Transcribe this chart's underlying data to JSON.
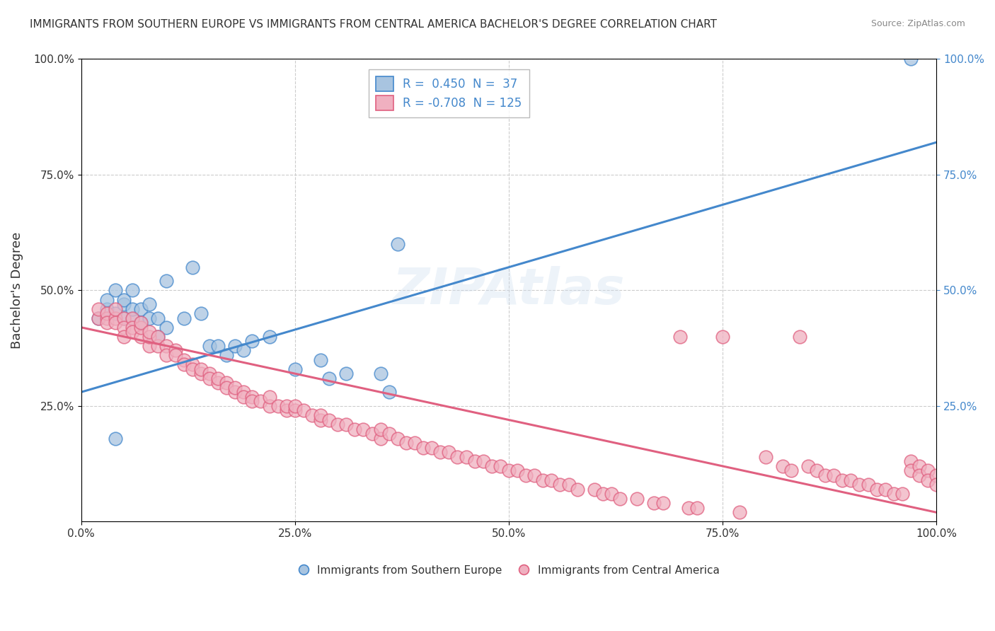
{
  "title": "IMMIGRANTS FROM SOUTHERN EUROPE VS IMMIGRANTS FROM CENTRAL AMERICA BACHELOR'S DEGREE CORRELATION CHART",
  "source": "Source: ZipAtlas.com",
  "ylabel_label": "Bachelor's Degree",
  "x_tick_labels": [
    "0.0%",
    "25.0%",
    "50.0%",
    "75.0%",
    "100.0%"
  ],
  "x_tick_vals": [
    0,
    0.25,
    0.5,
    0.75,
    1.0
  ],
  "y_tick_labels": [
    "25.0%",
    "50.0%",
    "75.0%",
    "100.0%"
  ],
  "y_tick_vals": [
    0.25,
    0.5,
    0.75,
    1.0
  ],
  "right_tick_labels": [
    "25.0%",
    "50.0%",
    "75.0%",
    "100.0%"
  ],
  "color_blue": "#a8c4e0",
  "color_pink": "#f0b0c0",
  "line_blue": "#4488cc",
  "line_pink": "#e06080",
  "blue_scatter": [
    [
      0.02,
      0.44
    ],
    [
      0.03,
      0.46
    ],
    [
      0.03,
      0.48
    ],
    [
      0.04,
      0.45
    ],
    [
      0.04,
      0.5
    ],
    [
      0.05,
      0.44
    ],
    [
      0.05,
      0.47
    ],
    [
      0.05,
      0.48
    ],
    [
      0.06,
      0.44
    ],
    [
      0.06,
      0.46
    ],
    [
      0.06,
      0.5
    ],
    [
      0.07,
      0.43
    ],
    [
      0.07,
      0.46
    ],
    [
      0.08,
      0.44
    ],
    [
      0.08,
      0.47
    ],
    [
      0.09,
      0.4
    ],
    [
      0.09,
      0.44
    ],
    [
      0.1,
      0.42
    ],
    [
      0.1,
      0.52
    ],
    [
      0.12,
      0.44
    ],
    [
      0.13,
      0.55
    ],
    [
      0.14,
      0.45
    ],
    [
      0.15,
      0.38
    ],
    [
      0.16,
      0.38
    ],
    [
      0.17,
      0.36
    ],
    [
      0.18,
      0.38
    ],
    [
      0.19,
      0.37
    ],
    [
      0.2,
      0.39
    ],
    [
      0.22,
      0.4
    ],
    [
      0.25,
      0.33
    ],
    [
      0.28,
      0.35
    ],
    [
      0.29,
      0.31
    ],
    [
      0.31,
      0.32
    ],
    [
      0.35,
      0.32
    ],
    [
      0.36,
      0.28
    ],
    [
      0.37,
      0.6
    ],
    [
      0.04,
      0.18
    ],
    [
      0.97,
      1.0
    ]
  ],
  "pink_scatter": [
    [
      0.02,
      0.44
    ],
    [
      0.02,
      0.46
    ],
    [
      0.03,
      0.44
    ],
    [
      0.03,
      0.45
    ],
    [
      0.03,
      0.43
    ],
    [
      0.04,
      0.44
    ],
    [
      0.04,
      0.46
    ],
    [
      0.04,
      0.43
    ],
    [
      0.05,
      0.44
    ],
    [
      0.05,
      0.42
    ],
    [
      0.05,
      0.4
    ],
    [
      0.06,
      0.44
    ],
    [
      0.06,
      0.42
    ],
    [
      0.06,
      0.41
    ],
    [
      0.07,
      0.4
    ],
    [
      0.07,
      0.42
    ],
    [
      0.07,
      0.43
    ],
    [
      0.08,
      0.38
    ],
    [
      0.08,
      0.4
    ],
    [
      0.08,
      0.41
    ],
    [
      0.09,
      0.38
    ],
    [
      0.09,
      0.4
    ],
    [
      0.1,
      0.38
    ],
    [
      0.1,
      0.36
    ],
    [
      0.11,
      0.37
    ],
    [
      0.11,
      0.36
    ],
    [
      0.12,
      0.35
    ],
    [
      0.12,
      0.34
    ],
    [
      0.13,
      0.34
    ],
    [
      0.13,
      0.33
    ],
    [
      0.14,
      0.32
    ],
    [
      0.14,
      0.33
    ],
    [
      0.15,
      0.32
    ],
    [
      0.15,
      0.31
    ],
    [
      0.16,
      0.3
    ],
    [
      0.16,
      0.31
    ],
    [
      0.17,
      0.3
    ],
    [
      0.17,
      0.29
    ],
    [
      0.18,
      0.28
    ],
    [
      0.18,
      0.29
    ],
    [
      0.19,
      0.28
    ],
    [
      0.19,
      0.27
    ],
    [
      0.2,
      0.27
    ],
    [
      0.2,
      0.26
    ],
    [
      0.21,
      0.26
    ],
    [
      0.22,
      0.25
    ],
    [
      0.22,
      0.27
    ],
    [
      0.23,
      0.25
    ],
    [
      0.24,
      0.24
    ],
    [
      0.24,
      0.25
    ],
    [
      0.25,
      0.24
    ],
    [
      0.25,
      0.25
    ],
    [
      0.26,
      0.24
    ],
    [
      0.27,
      0.23
    ],
    [
      0.28,
      0.22
    ],
    [
      0.28,
      0.23
    ],
    [
      0.29,
      0.22
    ],
    [
      0.3,
      0.21
    ],
    [
      0.31,
      0.21
    ],
    [
      0.32,
      0.2
    ],
    [
      0.33,
      0.2
    ],
    [
      0.34,
      0.19
    ],
    [
      0.35,
      0.18
    ],
    [
      0.35,
      0.2
    ],
    [
      0.36,
      0.19
    ],
    [
      0.37,
      0.18
    ],
    [
      0.38,
      0.17
    ],
    [
      0.39,
      0.17
    ],
    [
      0.4,
      0.16
    ],
    [
      0.41,
      0.16
    ],
    [
      0.42,
      0.15
    ],
    [
      0.43,
      0.15
    ],
    [
      0.44,
      0.14
    ],
    [
      0.45,
      0.14
    ],
    [
      0.46,
      0.13
    ],
    [
      0.47,
      0.13
    ],
    [
      0.48,
      0.12
    ],
    [
      0.49,
      0.12
    ],
    [
      0.5,
      0.11
    ],
    [
      0.51,
      0.11
    ],
    [
      0.52,
      0.1
    ],
    [
      0.53,
      0.1
    ],
    [
      0.54,
      0.09
    ],
    [
      0.55,
      0.09
    ],
    [
      0.56,
      0.08
    ],
    [
      0.57,
      0.08
    ],
    [
      0.58,
      0.07
    ],
    [
      0.6,
      0.07
    ],
    [
      0.61,
      0.06
    ],
    [
      0.62,
      0.06
    ],
    [
      0.63,
      0.05
    ],
    [
      0.65,
      0.05
    ],
    [
      0.67,
      0.04
    ],
    [
      0.68,
      0.04
    ],
    [
      0.7,
      0.4
    ],
    [
      0.71,
      0.03
    ],
    [
      0.72,
      0.03
    ],
    [
      0.75,
      0.4
    ],
    [
      0.77,
      0.02
    ],
    [
      0.8,
      0.14
    ],
    [
      0.82,
      0.12
    ],
    [
      0.83,
      0.11
    ],
    [
      0.84,
      0.4
    ],
    [
      0.85,
      0.12
    ],
    [
      0.86,
      0.11
    ],
    [
      0.87,
      0.1
    ],
    [
      0.88,
      0.1
    ],
    [
      0.89,
      0.09
    ],
    [
      0.9,
      0.09
    ],
    [
      0.91,
      0.08
    ],
    [
      0.92,
      0.08
    ],
    [
      0.93,
      0.07
    ],
    [
      0.94,
      0.07
    ],
    [
      0.95,
      0.06
    ],
    [
      0.96,
      0.06
    ],
    [
      0.97,
      0.13
    ],
    [
      0.97,
      0.11
    ],
    [
      0.98,
      0.12
    ],
    [
      0.98,
      0.1
    ],
    [
      0.99,
      0.11
    ],
    [
      0.99,
      0.09
    ],
    [
      1.0,
      0.1
    ],
    [
      1.0,
      0.08
    ]
  ],
  "blue_line_x": [
    0.0,
    1.0
  ],
  "blue_line_y": [
    0.28,
    0.82
  ],
  "pink_line_x": [
    0.0,
    1.0
  ],
  "pink_line_y": [
    0.42,
    0.02
  ],
  "xlim": [
    0,
    1.0
  ],
  "ylim": [
    0,
    1.0
  ],
  "grid_color": "#cccccc",
  "background_color": "#ffffff"
}
